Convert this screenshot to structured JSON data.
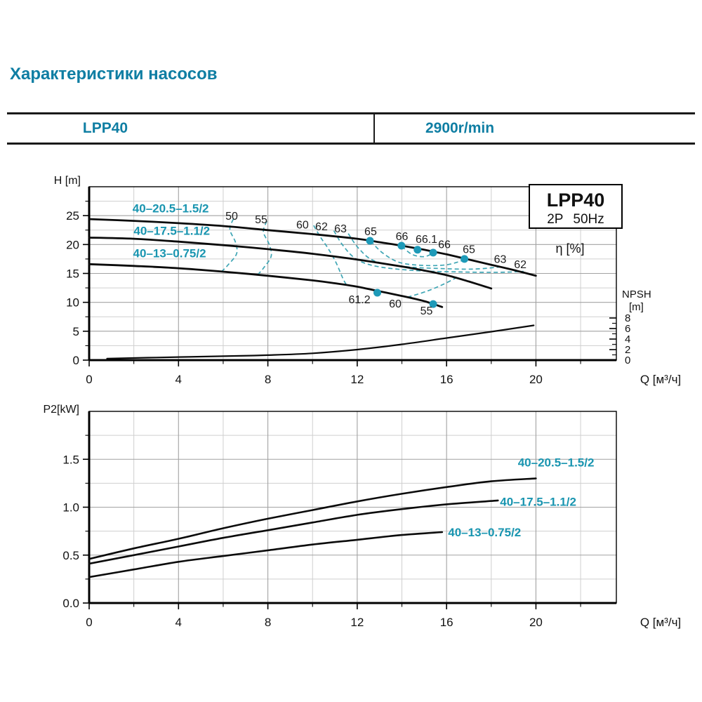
{
  "title": "Характеристики насосов",
  "table": {
    "model": "LPP40",
    "speed": "2900r/min"
  },
  "colors": {
    "teal_heading": "#0f7ea3",
    "teal_label": "#1995b0",
    "dot": "#1e9ab8",
    "dash": "#3fa6b5",
    "curve": "#0b0b0b",
    "grid_major": "#a2a2a2",
    "grid_minor": "#cfcfcf"
  },
  "chart_data": [
    {
      "id": "head-flow",
      "type": "line",
      "ylabel": "H [m]",
      "xlabel": "Q [м³/ч]",
      "eta_axis_label": "η [%]",
      "npsh_axis_label_1": "NPSH",
      "npsh_axis_label_2": "[m]",
      "corner_box": {
        "line1": "LPP40",
        "line2": "2P 50Hz"
      },
      "xlim": [
        0,
        23.6
      ],
      "ylim": [
        0,
        30
      ],
      "x_ticks": [
        {
          "v": 0,
          "t": "0"
        },
        {
          "v": 4,
          "t": "4"
        },
        {
          "v": 8,
          "t": "8"
        },
        {
          "v": 12,
          "t": "12"
        },
        {
          "v": 16,
          "t": "16"
        },
        {
          "v": 20,
          "t": "20"
        }
      ],
      "x_minor": [
        2,
        6,
        10,
        14,
        18,
        22
      ],
      "y_ticks": [
        {
          "v": 0,
          "t": "0"
        },
        {
          "v": 5,
          "t": "5"
        },
        {
          "v": 10,
          "t": "10"
        },
        {
          "v": 15,
          "t": "15"
        },
        {
          "v": 20,
          "t": "20"
        },
        {
          "v": 25,
          "t": "25"
        }
      ],
      "y_minor": [
        2.5,
        7.5,
        12.5,
        17.5,
        22.5,
        27.5
      ],
      "npsh_ticks": [
        {
          "v": 0,
          "t": "0"
        },
        {
          "v": 2,
          "t": "2"
        },
        {
          "v": 4,
          "t": "4"
        },
        {
          "v": 6,
          "t": "6"
        },
        {
          "v": 8,
          "t": "8"
        }
      ],
      "npsh_minor": [
        1,
        3,
        5,
        7
      ],
      "series": [
        {
          "name": "40–20.5–1.5/2",
          "label_pos": [
            3.65,
            26.3
          ],
          "points": [
            [
              0,
              24.4
            ],
            [
              2,
              24.1
            ],
            [
              4,
              23.7
            ],
            [
              6,
              23.2
            ],
            [
              8,
              22.5
            ],
            [
              10,
              21.8
            ],
            [
              12,
              21.0
            ],
            [
              13,
              20.4
            ],
            [
              14,
              19.8
            ],
            [
              15,
              19.1
            ],
            [
              16,
              18.3
            ],
            [
              17,
              17.4
            ],
            [
              18,
              16.5
            ],
            [
              19,
              15.6
            ],
            [
              20,
              14.6
            ]
          ]
        },
        {
          "name": "40–17.5–1.1/2",
          "label_pos": [
            3.7,
            22.4
          ],
          "points": [
            [
              0,
              21.2
            ],
            [
              2,
              21.0
            ],
            [
              4,
              20.5
            ],
            [
              6,
              19.9
            ],
            [
              8,
              19.2
            ],
            [
              10,
              18.4
            ],
            [
              12,
              17.4
            ],
            [
              14,
              16.2
            ],
            [
              15,
              15.5
            ],
            [
              16,
              14.7
            ],
            [
              17,
              13.6
            ],
            [
              18,
              12.4
            ]
          ]
        },
        {
          "name": "40–13–0.75/2",
          "label_pos": [
            3.6,
            18.5
          ],
          "points": [
            [
              0,
              16.6
            ],
            [
              2,
              16.3
            ],
            [
              4,
              15.9
            ],
            [
              6,
              15.3
            ],
            [
              8,
              14.6
            ],
            [
              10,
              13.8
            ],
            [
              11,
              13.3
            ],
            [
              12,
              12.7
            ],
            [
              13,
              11.9
            ],
            [
              14,
              11.1
            ],
            [
              15,
              10.2
            ],
            [
              15.8,
              9.2
            ]
          ]
        }
      ],
      "npsh_curve": {
        "points": [
          [
            0.8,
            0.3
          ],
          [
            3,
            0.5
          ],
          [
            6,
            0.75
          ],
          [
            8,
            0.95
          ],
          [
            10,
            1.3
          ],
          [
            12,
            2.0
          ],
          [
            14,
            3.0
          ],
          [
            16,
            4.2
          ],
          [
            18,
            5.4
          ],
          [
            19.9,
            6.6
          ]
        ]
      },
      "efficiency": {
        "dots": [
          {
            "q": 12.57,
            "h": 20.65
          },
          {
            "q": 13.98,
            "h": 19.8
          },
          {
            "q": 14.7,
            "h": 19.1
          },
          {
            "q": 15.4,
            "h": 18.6
          },
          {
            "q": 16.8,
            "h": 17.5
          },
          {
            "q": 12.9,
            "h": 11.66
          },
          {
            "q": 15.4,
            "h": 9.7
          }
        ],
        "labels": [
          {
            "text": "50",
            "q": 6.38,
            "h": 24.9
          },
          {
            "text": "55",
            "q": 7.7,
            "h": 24.3
          },
          {
            "text": "60",
            "q": 9.55,
            "h": 23.4
          },
          {
            "text": "62",
            "q": 10.4,
            "h": 23.1
          },
          {
            "text": "63",
            "q": 11.25,
            "h": 22.7
          },
          {
            "text": "65",
            "q": 12.6,
            "h": 22.2
          },
          {
            "text": "66",
            "q": 14.0,
            "h": 21.4
          },
          {
            "text": "66.1",
            "q": 15.1,
            "h": 20.9
          },
          {
            "text": "66",
            "q": 15.9,
            "h": 20.0
          },
          {
            "text": "65",
            "q": 17.0,
            "h": 19.1
          },
          {
            "text": "63",
            "q": 18.4,
            "h": 17.4
          },
          {
            "text": "62",
            "q": 19.3,
            "h": 16.5
          },
          {
            "text": "61.2",
            "q": 12.1,
            "h": 10.45
          },
          {
            "text": "60",
            "q": 13.7,
            "h": 9.7
          },
          {
            "text": "55",
            "q": 15.1,
            "h": 8.5
          }
        ],
        "contours": [
          {
            "eta": "50",
            "points": [
              [
                6.45,
                24.4
              ],
              [
                6.3,
                22.6
              ],
              [
                6.55,
                20.4
              ],
              [
                6.6,
                18.4
              ],
              [
                6.2,
                16.4
              ],
              [
                5.95,
                15.4
              ]
            ]
          },
          {
            "eta": "55",
            "points": [
              [
                7.95,
                24.05
              ],
              [
                7.8,
                22.2
              ],
              [
                8.05,
                20.1
              ],
              [
                8.15,
                18.0
              ],
              [
                7.8,
                15.9
              ],
              [
                7.55,
                14.8
              ]
            ]
          },
          {
            "eta": "60-left",
            "points": [
              [
                10.05,
                23.3
              ],
              [
                10.35,
                21.3
              ],
              [
                10.7,
                19.3
              ],
              [
                11.05,
                16.9
              ],
              [
                11.35,
                14.2
              ],
              [
                11.5,
                13.1
              ]
            ]
          },
          {
            "eta": "60-right",
            "points": [
              [
                14.25,
                10.9
              ],
              [
                15.1,
                11.9
              ],
              [
                15.9,
                13.2
              ],
              [
                16.5,
                14.4
              ]
            ]
          },
          {
            "eta": "62",
            "points": [
              [
                10.95,
                22.4
              ],
              [
                11.35,
                19.9
              ],
              [
                11.95,
                17.5
              ],
              [
                12.9,
                16.2
              ],
              [
                14.6,
                15.5
              ],
              [
                16.6,
                15.25
              ],
              [
                18.4,
                15.2
              ],
              [
                19.45,
                15.35
              ]
            ]
          },
          {
            "eta": "63",
            "points": [
              [
                11.6,
                21.9
              ],
              [
                12.05,
                19.4
              ],
              [
                12.75,
                17.2
              ],
              [
                14.1,
                16.2
              ],
              [
                15.7,
                15.85
              ],
              [
                17.2,
                15.75
              ],
              [
                18.35,
                16.1
              ]
            ]
          },
          {
            "eta": "65",
            "points": [
              [
                12.6,
                20.6
              ],
              [
                13.15,
                18.5
              ],
              [
                13.9,
                16.9
              ],
              [
                14.9,
                16.4
              ],
              [
                16.0,
                16.5
              ],
              [
                16.85,
                17.4
              ]
            ]
          },
          {
            "eta": "66",
            "points": [
              [
                14.0,
                19.7
              ],
              [
                14.45,
                18.3
              ],
              [
                15.0,
                17.9
              ],
              [
                15.4,
                18.55
              ]
            ]
          }
        ]
      }
    },
    {
      "id": "power",
      "type": "line",
      "ylabel": "P2[kW]",
      "xlabel": "Q [м³/ч]",
      "xlim": [
        0,
        23.6
      ],
      "ylim": [
        0,
        2
      ],
      "x_ticks": [
        {
          "v": 0,
          "t": "0"
        },
        {
          "v": 4,
          "t": "4"
        },
        {
          "v": 8,
          "t": "8"
        },
        {
          "v": 12,
          "t": "12"
        },
        {
          "v": 16,
          "t": "16"
        },
        {
          "v": 20,
          "t": "20"
        }
      ],
      "x_minor": [
        2,
        6,
        10,
        14,
        18,
        22
      ],
      "y_ticks": [
        {
          "v": 0,
          "t": "0.0"
        },
        {
          "v": 0.5,
          "t": "0.5"
        },
        {
          "v": 1,
          "t": "1.0"
        },
        {
          "v": 1.5,
          "t": "1.5"
        }
      ],
      "y_minor": [
        0.25,
        0.75,
        1.25,
        1.75
      ],
      "series": [
        {
          "name": "40–20.5–1.5/2",
          "label_pos": [
            20.9,
            1.47
          ],
          "points": [
            [
              0,
              0.46
            ],
            [
              2,
              0.57
            ],
            [
              4,
              0.67
            ],
            [
              6,
              0.78
            ],
            [
              8,
              0.88
            ],
            [
              10,
              0.97
            ],
            [
              12,
              1.06
            ],
            [
              14,
              1.14
            ],
            [
              16,
              1.21
            ],
            [
              18,
              1.27
            ],
            [
              20,
              1.3
            ]
          ]
        },
        {
          "name": "40–17.5–1.1/2",
          "label_pos": [
            20.1,
            1.06
          ],
          "points": [
            [
              0,
              0.41
            ],
            [
              2,
              0.5
            ],
            [
              4,
              0.59
            ],
            [
              6,
              0.68
            ],
            [
              8,
              0.76
            ],
            [
              10,
              0.84
            ],
            [
              12,
              0.92
            ],
            [
              14,
              0.98
            ],
            [
              16,
              1.03
            ],
            [
              18.3,
              1.07
            ]
          ]
        },
        {
          "name": "40–13–0.75/2",
          "label_pos": [
            17.7,
            0.74
          ],
          "points": [
            [
              0,
              0.27
            ],
            [
              2,
              0.35
            ],
            [
              4,
              0.43
            ],
            [
              6,
              0.49
            ],
            [
              8,
              0.55
            ],
            [
              10,
              0.61
            ],
            [
              12,
              0.66
            ],
            [
              14,
              0.71
            ],
            [
              15.8,
              0.74
            ]
          ]
        }
      ]
    }
  ]
}
